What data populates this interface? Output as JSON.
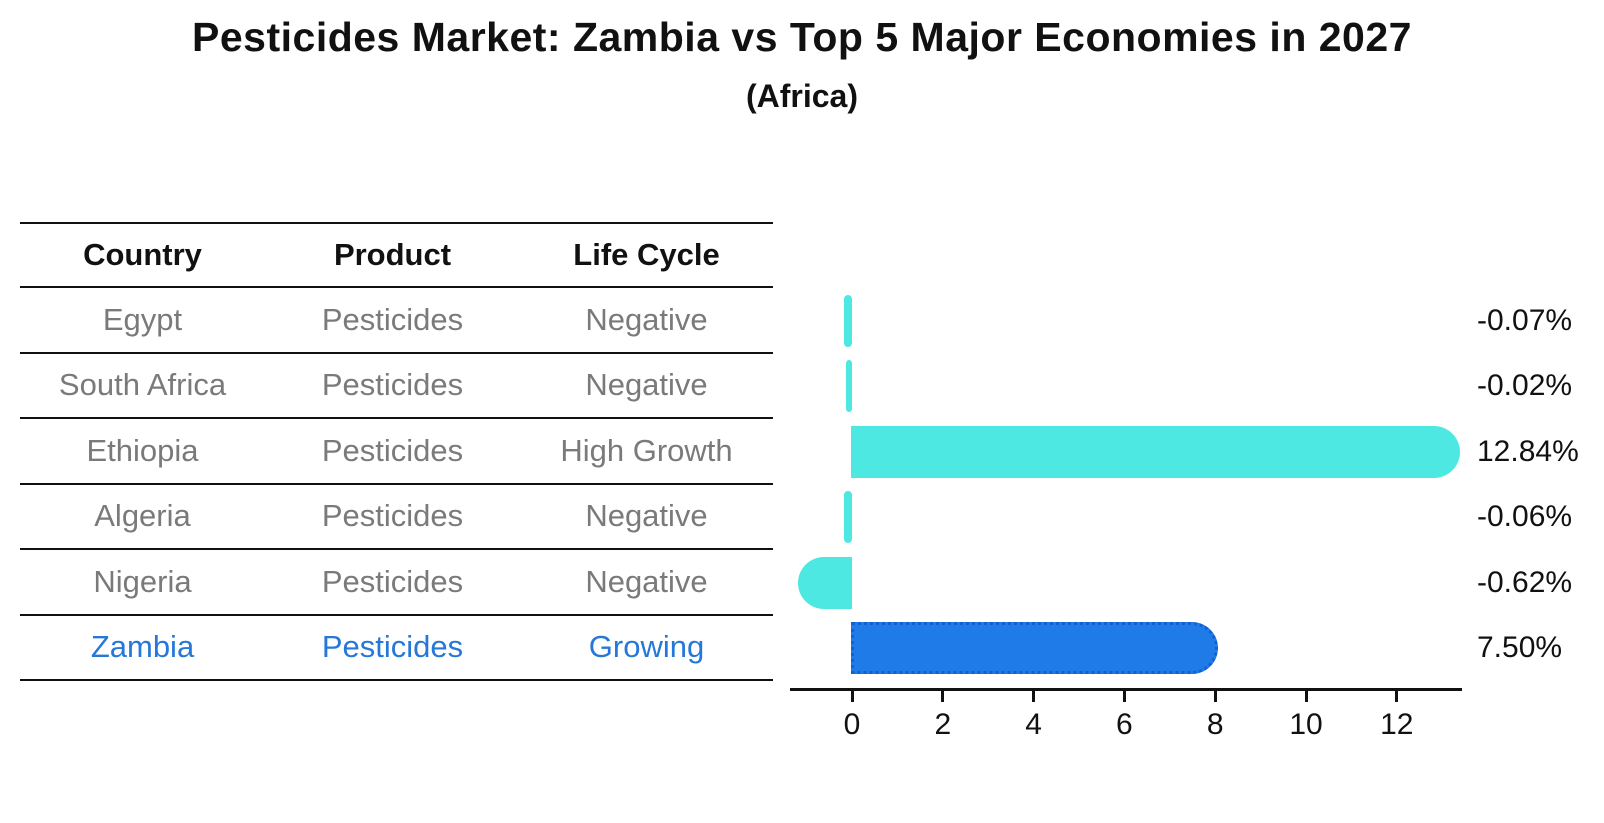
{
  "title": "Pesticides Market: Zambia vs Top 5 Major Economies in 2027",
  "subtitle": "(Africa)",
  "colors": {
    "bar_cyan": "#4de8e1",
    "bar_highlight_blue": "#1f7be8",
    "bar_highlight_border": "#1261cf",
    "highlight_text": "#2578d8",
    "table_text_gray": "#7a7a7a",
    "text_black": "#111111"
  },
  "table": {
    "headers": [
      "Country",
      "Product",
      "Life Cycle"
    ],
    "rows": [
      {
        "country": "Egypt",
        "product": "Pesticides",
        "life_cycle": "Negative",
        "highlight": false
      },
      {
        "country": "South Africa",
        "product": "Pesticides",
        "life_cycle": "Negative",
        "highlight": false
      },
      {
        "country": "Ethiopia",
        "product": "Pesticides",
        "life_cycle": "High Growth",
        "highlight": false
      },
      {
        "country": "Algeria",
        "product": "Pesticides",
        "life_cycle": "Negative",
        "highlight": false
      },
      {
        "country": "Nigeria",
        "product": "Pesticides",
        "life_cycle": "Negative",
        "highlight": false
      },
      {
        "country": "Zambia",
        "product": "Pesticides",
        "life_cycle": "Growing",
        "highlight": true
      }
    ]
  },
  "chart_data": {
    "type": "bar",
    "orientation": "horizontal",
    "title": "Pesticides Market: Zambia vs Top 5 Major Economies in 2027",
    "subtitle": "(Africa)",
    "categories": [
      "Egypt",
      "South Africa",
      "Ethiopia",
      "Algeria",
      "Nigeria",
      "Zambia"
    ],
    "values": [
      -0.07,
      -0.02,
      12.84,
      -0.06,
      -0.62,
      7.5
    ],
    "value_labels": [
      "-0.07%",
      "-0.02%",
      "12.84%",
      "-0.06%",
      "-0.62%",
      "7.50%"
    ],
    "highlight_index": 5,
    "x_ticks": [
      0,
      2,
      4,
      6,
      8,
      10,
      12
    ],
    "xlim": [
      -1.4,
      13.4
    ],
    "xlabel": "",
    "ylabel": "",
    "grid": false,
    "legend": false,
    "value_unit": "percent"
  }
}
